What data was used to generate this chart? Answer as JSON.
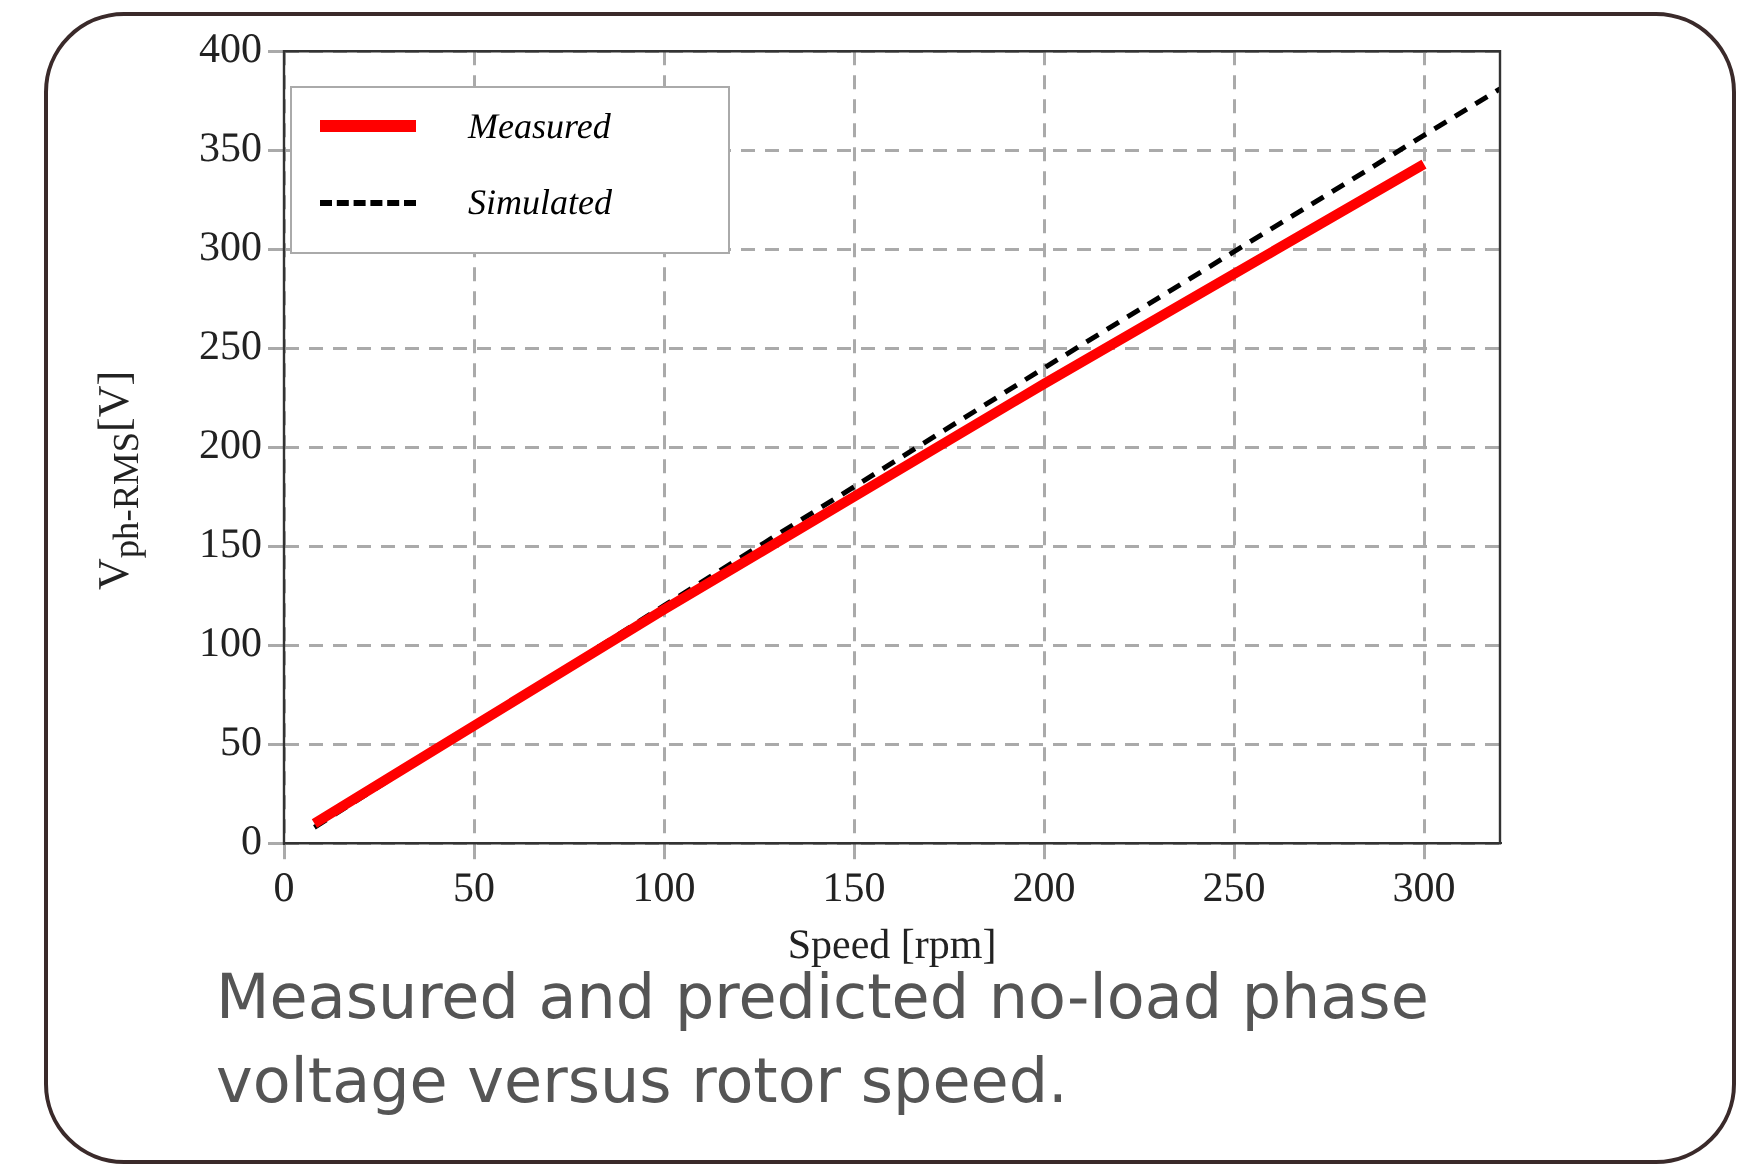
{
  "chart_data": {
    "type": "line",
    "xlabel": "Speed [rpm]",
    "ylabel": "V$_{ph-RMS}$[V]",
    "xlim": [
      0,
      320
    ],
    "xticks": [
      0,
      50,
      100,
      150,
      200,
      250,
      300
    ],
    "ylim": [
      0,
      400
    ],
    "yticks": [
      0,
      50,
      100,
      150,
      200,
      250,
      300,
      350,
      400
    ],
    "grid": true,
    "legend": "top left",
    "marker": "none",
    "series": [
      {
        "name": "Measured",
        "color": "#ff0000",
        "x": [
          8,
          100,
          200,
          300
        ],
        "values": [
          10,
          118,
          232,
          343
        ],
        "line_style": "solid"
      },
      {
        "name": "Simulated",
        "color": "#000000",
        "x": [
          8,
          100,
          200,
          320
        ],
        "values": [
          8,
          120,
          240,
          381
        ],
        "line_style": "dashed"
      }
    ],
    "annotations": [
      "Measured and predicted no-load phase voltage versus rotor speed."
    ]
  }
}
